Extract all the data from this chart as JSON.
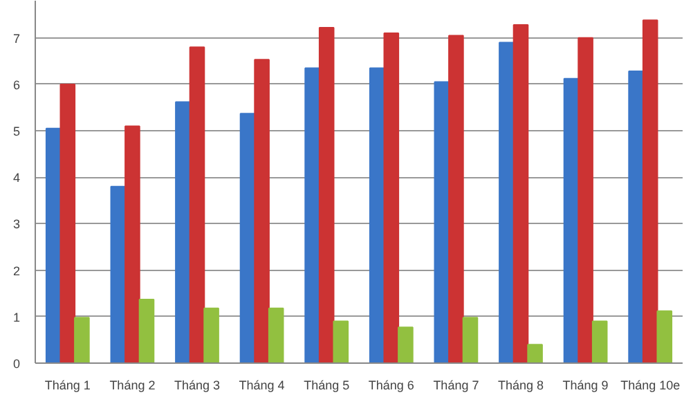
{
  "chart_data": {
    "type": "bar",
    "categories": [
      "Tháng 1",
      "Tháng 2",
      "Tháng 3",
      "Tháng 4",
      "Tháng 5",
      "Tháng 6",
      "Tháng 7",
      "Tháng 8",
      "Tháng 9",
      "Tháng 10e"
    ],
    "series": [
      {
        "color": "#3a76c8",
        "values": [
          5.05,
          3.8,
          5.62,
          5.37,
          6.35,
          6.35,
          6.05,
          6.9,
          6.12,
          6.28
        ]
      },
      {
        "color": "#cc3333",
        "values": [
          6.0,
          5.1,
          6.8,
          6.53,
          7.22,
          7.1,
          7.05,
          7.28,
          7.0,
          7.38
        ]
      },
      {
        "color": "#92c040",
        "values": [
          0.98,
          1.37,
          1.18,
          1.18,
          0.9,
          0.77,
          0.98,
          0.4,
          0.9,
          1.12
        ]
      }
    ],
    "ylim": [
      0,
      7.8
    ],
    "yticks": [
      0,
      1,
      2,
      3,
      4,
      5,
      6,
      7
    ],
    "grid": "y"
  }
}
